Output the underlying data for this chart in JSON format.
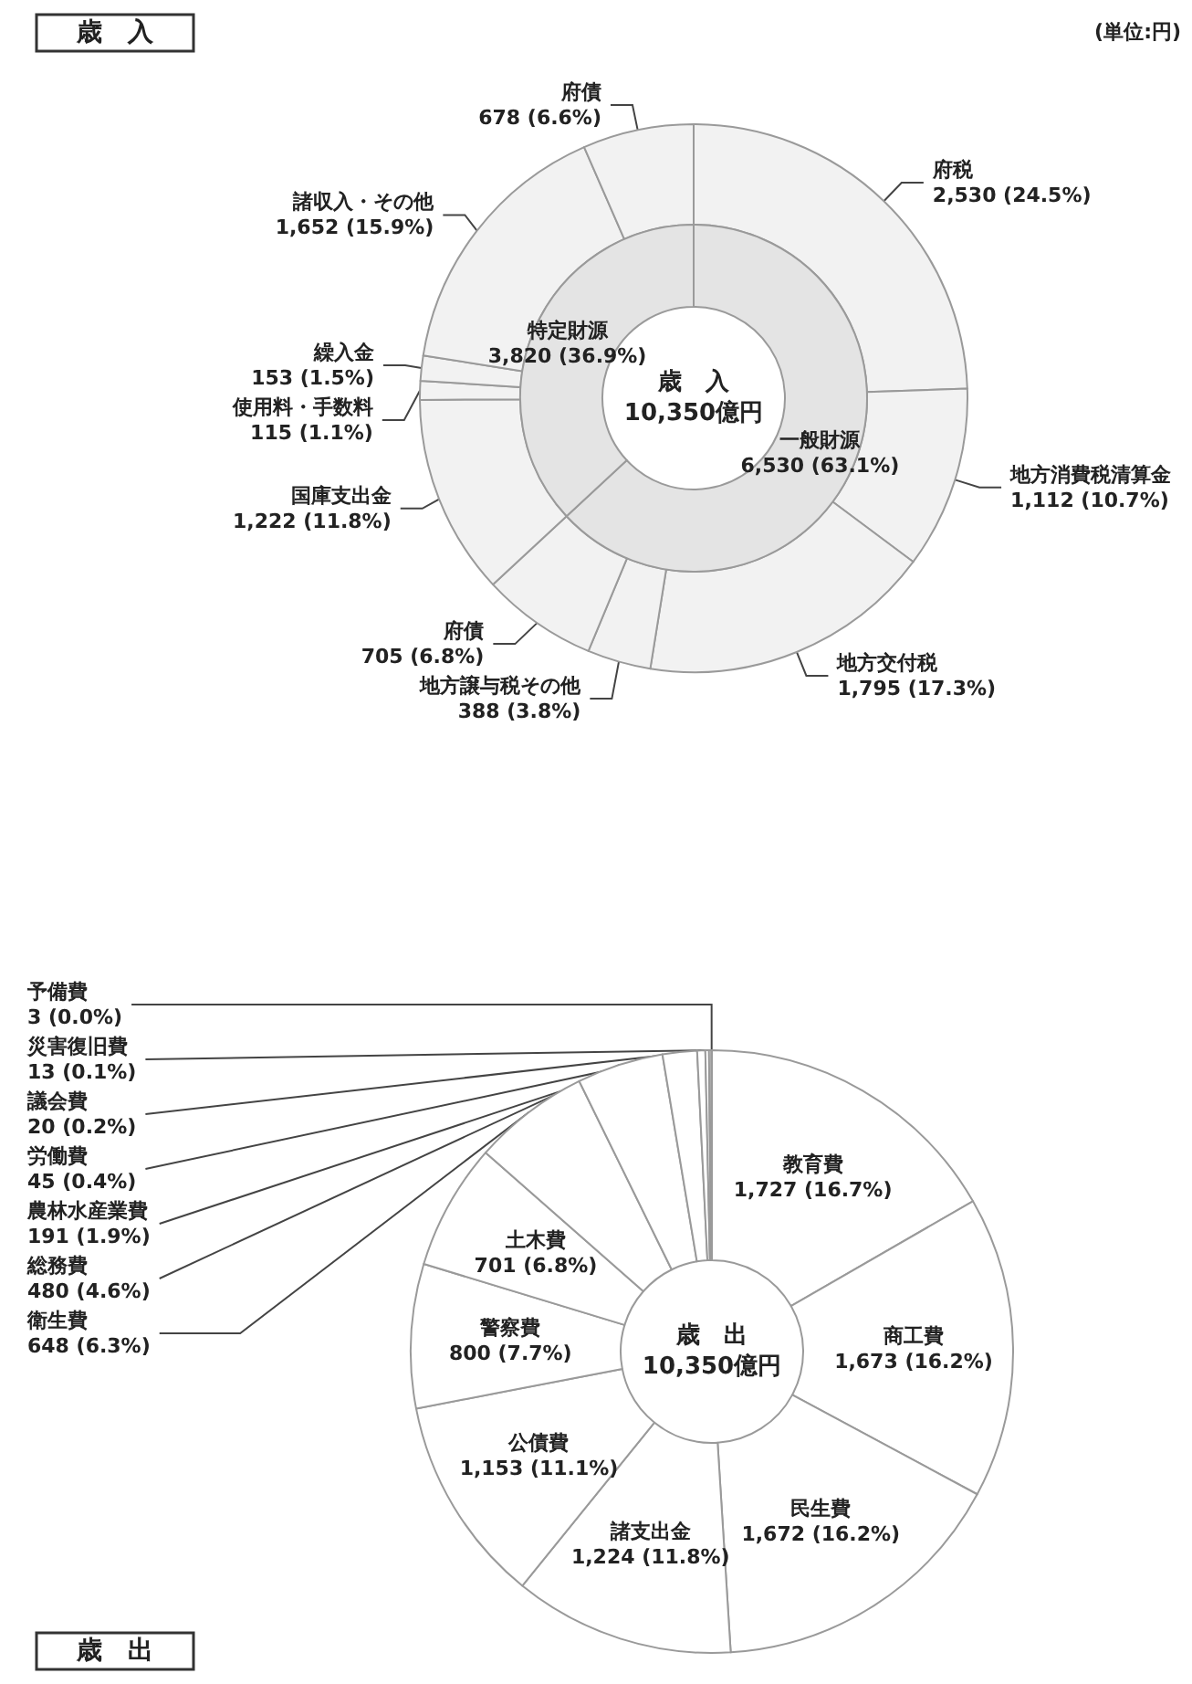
{
  "chart_data": [
    {
      "type": "donut",
      "title": "歳　入",
      "annotations": [
        "(単位:円)"
      ],
      "categories": [
        "府税",
        "地方消費税清算金",
        "地方交付税",
        "地方譲与税その他",
        "府債",
        "国庫支出金",
        "使用料・手数料",
        "繰入金",
        "諸収入・その他",
        "府債"
      ],
      "values": [
        2530,
        1112,
        1795,
        388,
        705,
        1222,
        115,
        153,
        1652,
        678
      ],
      "value_labels": [
        "2,530 (24.5%)",
        "1,112 (10.7%)",
        "1,795 (17.3%)",
        "388 (3.8%)",
        "705 (6.8%)",
        "1,222 (11.8%)",
        "115 (1.1%)",
        "153 (1.5%)",
        "1,652 (15.9%)",
        "678 (6.6%)"
      ],
      "colors": [
        "#f2f2f2",
        "#f2f2f2",
        "#f2f2f2",
        "#f2f2f2",
        "#f2f2f2",
        "#f2f2f2",
        "#f2f2f2",
        "#f2f2f2",
        "#f2f2f2",
        "#f2f2f2"
      ]
    },
    {
      "type": "donut",
      "annotations": [
        "歳　入\n10,350億円"
      ],
      "categories": [
        "一般財源",
        "特定財源"
      ],
      "values": [
        6530,
        3820
      ],
      "value_labels": [
        "6,530 (63.1%)",
        "3,820 (36.9%)"
      ],
      "colors": [
        "#e4e4e4",
        "#e4e4e4"
      ]
    },
    {
      "type": "donut",
      "title": "歳　出",
      "annotations": [
        "歳　出\n10,350億円"
      ],
      "categories": [
        "教育費",
        "商工費",
        "民生費",
        "諸支出金",
        "公債費",
        "警察費",
        "土木費",
        "衛生費",
        "総務費",
        "農林水産業費",
        "労働費",
        "議会費",
        "災害復旧費",
        "予備費"
      ],
      "values": [
        1727,
        1673,
        1672,
        1224,
        1153,
        800,
        701,
        648,
        480,
        191,
        45,
        20,
        13,
        3
      ],
      "value_labels": [
        "1,727 (16.7%)",
        "1,673 (16.2%)",
        "1,672 (16.2%)",
        "1,224 (11.8%)",
        "1,153 (11.1%)",
        "800 (7.7%)",
        "701 (6.8%)",
        "648 (6.3%)",
        "480 (4.6%)",
        "191 (1.9%)",
        "45 (0.4%)",
        "20 (0.2%)",
        "13 (0.1%)",
        "3 (0.0%)"
      ],
      "colors": [
        "#ffffff",
        "#ffffff",
        "#ffffff",
        "#ffffff",
        "#ffffff",
        "#ffffff",
        "#ffffff",
        "#ffffff",
        "#ffffff",
        "#ffffff",
        "#ffffff",
        "#ffffff",
        "#ffffff",
        "#ffffff"
      ]
    }
  ]
}
